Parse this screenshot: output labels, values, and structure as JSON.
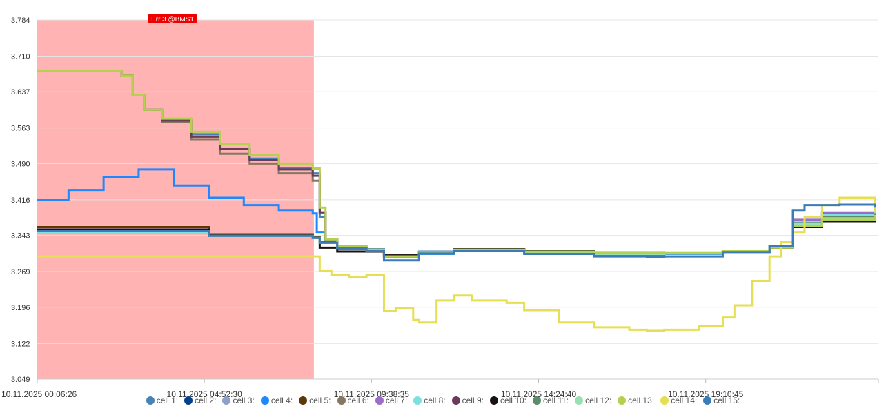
{
  "chart_data": {
    "type": "line",
    "step": true,
    "title": "",
    "xlabel": "",
    "ylabel": "",
    "ylim": [
      3.049,
      3.784
    ],
    "y_ticks": [
      "3.784",
      "3.710",
      "3.637",
      "3.563",
      "3.490",
      "3.416",
      "3.343",
      "3.269",
      "3.196",
      "3.122",
      "3.049"
    ],
    "x_range": [
      "10.11.2025 00:06:26",
      "11.11.2025 00:06:26"
    ],
    "x_ticks": [
      "10.11.2025 00:06:26",
      "10.11.2025 04:52:30",
      "10.11.2025 09:38:35",
      "10.11.2025 14:24:40",
      "10.11.2025 19:10:45"
    ],
    "grid": true,
    "error_region": {
      "label": "Err 3 @BMS1",
      "x_start": "10.11.2025 00:06:26",
      "x_end": "10.11.2025 08:00:00",
      "color": "#ffb3b3",
      "badge_color": "#ee0000"
    },
    "legend_position": "bottom",
    "series": [
      {
        "name": "cell 1:",
        "color": "#4682b4",
        "x": [
          "00:06",
          "02:20",
          "02:31",
          "02:50",
          "03:10",
          "03:40",
          "04:30",
          "05:20",
          "06:10",
          "07:00",
          "07:58",
          "08:10",
          "08:20",
          "08:40",
          "09:30",
          "10:00",
          "11:00",
          "12:00",
          "14:00",
          "16:00",
          "18:00",
          "19:40",
          "21:00",
          "21:40",
          "22:30",
          "24:00"
        ],
        "values": [
          3.68,
          3.68,
          3.67,
          3.63,
          3.6,
          3.58,
          3.55,
          3.52,
          3.5,
          3.48,
          3.47,
          3.38,
          3.33,
          3.32,
          3.315,
          3.3,
          3.31,
          3.315,
          3.31,
          3.305,
          3.308,
          3.31,
          3.32,
          3.37,
          3.385,
          3.395
        ]
      },
      {
        "name": "cell 2:",
        "color": "#00418d",
        "x": [
          "00:06",
          "02:30",
          "05:00",
          "07:58",
          "08:10",
          "08:40",
          "09:30",
          "10:00",
          "11:00",
          "12:00",
          "14:00",
          "16:00",
          "18:00",
          "19:40",
          "21:00",
          "21:40",
          "22:30",
          "24:00"
        ],
        "values": [
          3.355,
          3.355,
          3.345,
          3.34,
          3.33,
          3.318,
          3.312,
          3.3,
          3.305,
          3.312,
          3.308,
          3.305,
          3.306,
          3.309,
          3.32,
          3.368,
          3.382,
          3.39
        ]
      },
      {
        "name": "cell 3:",
        "color": "#8da0cb",
        "x": [
          "00:06",
          "02:30",
          "05:00",
          "07:58",
          "08:10",
          "08:40",
          "09:30",
          "10:00",
          "11:00",
          "12:00",
          "14:00",
          "16:00",
          "18:00",
          "19:40",
          "21:00",
          "21:40",
          "22:30",
          "24:00"
        ],
        "values": [
          3.352,
          3.352,
          3.343,
          3.338,
          3.328,
          3.318,
          3.312,
          3.3,
          3.305,
          3.312,
          3.308,
          3.305,
          3.306,
          3.309,
          3.32,
          3.37,
          3.384,
          3.392
        ]
      },
      {
        "name": "cell 4:",
        "color": "#1e88ff",
        "x": [
          "00:06",
          "01:00",
          "02:00",
          "03:00",
          "04:00",
          "05:00",
          "06:00",
          "07:00",
          "07:58",
          "08:05",
          "08:20",
          "08:40",
          "09:30",
          "10:00",
          "11:00",
          "12:00",
          "14:00",
          "16:00",
          "18:00",
          "19:40",
          "21:00",
          "21:40",
          "22:30",
          "24:00"
        ],
        "values": [
          3.416,
          3.436,
          3.463,
          3.478,
          3.445,
          3.42,
          3.405,
          3.395,
          3.388,
          3.35,
          3.33,
          3.316,
          3.312,
          3.298,
          3.305,
          3.312,
          3.308,
          3.303,
          3.305,
          3.309,
          3.322,
          3.372,
          3.388,
          3.392
        ]
      },
      {
        "name": "cell 5:",
        "color": "#5e3608",
        "x": [
          "00:06",
          "02:30",
          "05:00",
          "07:58",
          "08:10",
          "08:40",
          "09:30",
          "10:00",
          "11:00",
          "12:00",
          "14:00",
          "16:00",
          "18:00",
          "19:40",
          "21:00",
          "21:40",
          "22:30",
          "24:00"
        ],
        "values": [
          3.36,
          3.36,
          3.345,
          3.34,
          3.33,
          3.318,
          3.312,
          3.302,
          3.308,
          3.314,
          3.31,
          3.308,
          3.307,
          3.31,
          3.318,
          3.36,
          3.372,
          3.38
        ]
      },
      {
        "name": "cell 6:",
        "color": "#857860",
        "x": [
          "00:06",
          "02:20",
          "02:31",
          "02:50",
          "03:10",
          "03:40",
          "04:30",
          "05:20",
          "06:10",
          "07:00",
          "07:58",
          "08:10",
          "08:20",
          "08:40",
          "09:30",
          "10:00",
          "11:00",
          "12:00",
          "14:00",
          "16:00",
          "18:00",
          "19:40",
          "21:00",
          "21:40",
          "22:30",
          "24:00"
        ],
        "values": [
          3.68,
          3.68,
          3.67,
          3.63,
          3.6,
          3.575,
          3.54,
          3.51,
          3.49,
          3.47,
          3.455,
          3.39,
          3.335,
          3.32,
          3.313,
          3.3,
          3.309,
          3.314,
          3.309,
          3.306,
          3.307,
          3.31,
          3.318,
          3.362,
          3.375,
          3.383
        ]
      },
      {
        "name": "cell 7:",
        "color": "#9b6dc6",
        "x": [
          "00:06",
          "02:30",
          "05:00",
          "07:58",
          "08:10",
          "08:40",
          "09:30",
          "10:00",
          "11:00",
          "12:00",
          "14:00",
          "16:00",
          "18:00",
          "19:40",
          "21:00",
          "21:40",
          "22:30",
          "24:00"
        ],
        "values": [
          3.35,
          3.35,
          3.342,
          3.338,
          3.328,
          3.317,
          3.311,
          3.3,
          3.306,
          3.312,
          3.308,
          3.305,
          3.306,
          3.309,
          3.321,
          3.375,
          3.39,
          3.398
        ]
      },
      {
        "name": "cell 8:",
        "color": "#7de0e0",
        "x": [
          "00:06",
          "02:30",
          "05:00",
          "07:58",
          "08:10",
          "08:40",
          "09:30",
          "10:00",
          "11:00",
          "12:00",
          "14:00",
          "16:00",
          "18:00",
          "19:40",
          "21:00",
          "21:40",
          "22:30",
          "24:00"
        ],
        "values": [
          3.35,
          3.35,
          3.342,
          3.338,
          3.328,
          3.317,
          3.311,
          3.3,
          3.306,
          3.312,
          3.308,
          3.305,
          3.306,
          3.309,
          3.32,
          3.37,
          3.385,
          3.39
        ]
      },
      {
        "name": "cell 9:",
        "color": "#6b3c5a",
        "x": [
          "00:06",
          "02:20",
          "02:31",
          "02:50",
          "03:10",
          "03:40",
          "04:30",
          "05:20",
          "06:10",
          "07:00",
          "07:58",
          "08:10",
          "08:20",
          "08:40",
          "09:30",
          "10:00",
          "11:00",
          "12:00",
          "14:00",
          "16:00",
          "18:00",
          "19:40",
          "21:00",
          "21:40",
          "22:30",
          "24:00"
        ],
        "values": [
          3.68,
          3.68,
          3.67,
          3.63,
          3.6,
          3.578,
          3.545,
          3.52,
          3.497,
          3.478,
          3.465,
          3.39,
          3.335,
          3.32,
          3.313,
          3.3,
          3.309,
          3.314,
          3.309,
          3.306,
          3.307,
          3.31,
          3.319,
          3.365,
          3.38,
          3.388
        ]
      },
      {
        "name": "cell 10:",
        "color": "#1a1210",
        "x": [
          "00:06",
          "02:30",
          "05:00",
          "07:58",
          "08:10",
          "08:40",
          "09:30",
          "10:00",
          "11:00",
          "12:00",
          "14:00",
          "16:00",
          "18:00",
          "19:40",
          "21:00",
          "21:40",
          "22:30",
          "24:00"
        ],
        "values": [
          3.355,
          3.355,
          3.343,
          3.338,
          3.318,
          3.31,
          3.31,
          3.302,
          3.308,
          3.315,
          3.311,
          3.308,
          3.307,
          3.31,
          3.318,
          3.36,
          3.372,
          3.38
        ]
      },
      {
        "name": "cell 11:",
        "color": "#5c8c6b",
        "x": [
          "00:06",
          "02:30",
          "05:00",
          "07:58",
          "08:10",
          "08:40",
          "09:30",
          "10:00",
          "11:00",
          "12:00",
          "14:00",
          "16:00",
          "18:00",
          "19:40",
          "21:00",
          "21:40",
          "22:30",
          "24:00"
        ],
        "values": [
          3.352,
          3.352,
          3.342,
          3.338,
          3.328,
          3.317,
          3.311,
          3.3,
          3.306,
          3.312,
          3.308,
          3.305,
          3.306,
          3.309,
          3.32,
          3.368,
          3.38,
          3.386
        ]
      },
      {
        "name": "cell 12:",
        "color": "#98e0b0",
        "x": [
          "00:06",
          "02:30",
          "05:00",
          "07:58",
          "08:10",
          "08:40",
          "09:30",
          "10:00",
          "11:00",
          "12:00",
          "14:00",
          "16:00",
          "18:00",
          "19:40",
          "21:00",
          "21:40",
          "22:30",
          "24:00"
        ],
        "values": [
          3.352,
          3.352,
          3.342,
          3.338,
          3.328,
          3.317,
          3.311,
          3.3,
          3.306,
          3.312,
          3.308,
          3.305,
          3.306,
          3.309,
          3.32,
          3.366,
          3.378,
          3.385
        ]
      },
      {
        "name": "cell 13:",
        "color": "#b5cf50",
        "x": [
          "00:06",
          "02:20",
          "02:31",
          "02:50",
          "03:10",
          "03:40",
          "04:30",
          "05:20",
          "06:10",
          "07:00",
          "07:58",
          "08:10",
          "08:20",
          "08:40",
          "09:30",
          "10:00",
          "11:00",
          "12:00",
          "14:00",
          "16:00",
          "18:00",
          "19:40",
          "21:00",
          "21:40",
          "22:30",
          "24:00"
        ],
        "values": [
          3.68,
          3.68,
          3.67,
          3.63,
          3.6,
          3.582,
          3.555,
          3.53,
          3.508,
          3.49,
          3.48,
          3.4,
          3.335,
          3.32,
          3.314,
          3.3,
          3.309,
          3.314,
          3.31,
          3.307,
          3.308,
          3.311,
          3.318,
          3.362,
          3.375,
          3.382
        ]
      },
      {
        "name": "cell 14:",
        "color": "#e6df55",
        "x": [
          "00:06",
          "07:58",
          "08:10",
          "08:30",
          "09:00",
          "09:30",
          "10:00",
          "10:20",
          "10:50",
          "11:00",
          "11:30",
          "12:00",
          "12:30",
          "13:30",
          "14:00",
          "15:00",
          "16:00",
          "17:00",
          "17:30",
          "18:00",
          "19:00",
          "19:40",
          "20:00",
          "20:30",
          "21:00",
          "21:20",
          "21:40",
          "22:00",
          "22:30",
          "23:00",
          "23:30",
          "24:00"
        ],
        "values": [
          3.3,
          3.3,
          3.27,
          3.262,
          3.258,
          3.262,
          3.188,
          3.195,
          3.17,
          3.165,
          3.21,
          3.22,
          3.21,
          3.205,
          3.19,
          3.165,
          3.155,
          3.15,
          3.148,
          3.15,
          3.158,
          3.175,
          3.2,
          3.25,
          3.3,
          3.33,
          3.35,
          3.38,
          3.405,
          3.42,
          3.42,
          3.39
        ]
      },
      {
        "name": "cell 15:",
        "color": "#3a7bb8",
        "x": [
          "00:06",
          "02:30",
          "05:00",
          "07:58",
          "08:10",
          "08:40",
          "09:30",
          "10:00",
          "11:00",
          "12:00",
          "14:00",
          "16:00",
          "17:30",
          "18:00",
          "19:40",
          "21:00",
          "21:40",
          "22:00",
          "23:00",
          "24:00"
        ],
        "values": [
          3.352,
          3.352,
          3.342,
          3.338,
          3.328,
          3.317,
          3.311,
          3.292,
          3.306,
          3.312,
          3.305,
          3.3,
          3.298,
          3.3,
          3.309,
          3.322,
          3.395,
          3.405,
          3.406,
          3.4
        ]
      }
    ]
  }
}
